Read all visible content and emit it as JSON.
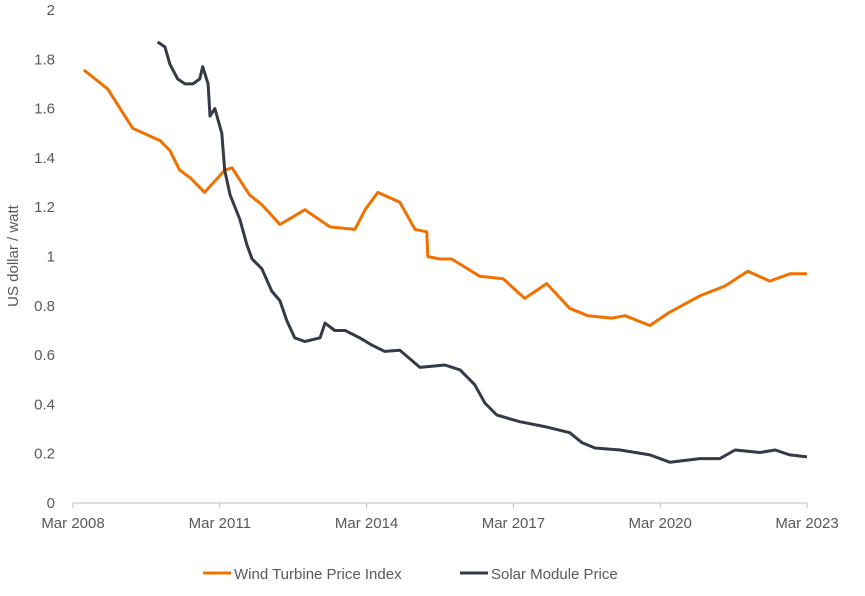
{
  "chart_data": {
    "type": "line",
    "title": "",
    "xlabel": "",
    "ylabel": "US dollar / watt",
    "xlim": [
      2008.17,
      2023.17
    ],
    "ylim": [
      0,
      2
    ],
    "y_ticks": [
      "0",
      "0.2",
      "0.4",
      "0.6",
      "0.8",
      "1",
      "1.2",
      "1.4",
      "1.6",
      "1.8",
      "2"
    ],
    "x_ticks": [
      {
        "label": "Mar 2008",
        "value": 2008.17
      },
      {
        "label": "Mar 2011",
        "value": 2011.17
      },
      {
        "label": "Mar 2014",
        "value": 2014.17
      },
      {
        "label": "Mar 2017",
        "value": 2017.17
      },
      {
        "label": "Mar 2020",
        "value": 2020.17
      },
      {
        "label": "Mar 2023",
        "value": 2023.17
      }
    ],
    "grid": false,
    "legend_position": "bottom",
    "series": [
      {
        "name": "Wind Turbine Price Index",
        "color": "#F07000",
        "x": [
          2008.39,
          2008.88,
          2009.39,
          2009.95,
          2010.15,
          2010.35,
          2010.56,
          2010.86,
          2011.27,
          2011.42,
          2011.78,
          2012.03,
          2012.4,
          2012.91,
          2013.42,
          2013.93,
          2014.14,
          2014.4,
          2014.85,
          2015.16,
          2015.4,
          2015.42,
          2015.67,
          2015.91,
          2016.28,
          2016.48,
          2016.96,
          2017.4,
          2017.85,
          2018.32,
          2018.69,
          2019.18,
          2019.45,
          2019.96,
          2020.33,
          2020.98,
          2021.49,
          2021.96,
          2022.41,
          2022.82,
          2023.17
        ],
        "y": [
          1.757,
          1.68,
          1.52,
          1.47,
          1.43,
          1.35,
          1.32,
          1.26,
          1.35,
          1.36,
          1.25,
          1.21,
          1.13,
          1.19,
          1.12,
          1.11,
          1.19,
          1.26,
          1.22,
          1.11,
          1.1,
          1.0,
          0.99,
          0.99,
          0.945,
          0.92,
          0.91,
          0.83,
          0.89,
          0.79,
          0.76,
          0.75,
          0.76,
          0.72,
          0.77,
          0.84,
          0.88,
          0.94,
          0.9,
          0.93,
          0.93
        ]
      },
      {
        "name": "Solar Module Price",
        "color": "#343A48",
        "x": [
          2009.9,
          2010.05,
          2010.15,
          2010.31,
          2010.46,
          2010.62,
          2010.76,
          2010.82,
          2010.93,
          2010.97,
          2011.07,
          2011.21,
          2011.27,
          2011.38,
          2011.58,
          2011.72,
          2011.83,
          2012.03,
          2012.23,
          2012.4,
          2012.54,
          2012.7,
          2012.91,
          2013.22,
          2013.32,
          2013.52,
          2013.73,
          2014.03,
          2014.28,
          2014.54,
          2014.85,
          2015.26,
          2015.77,
          2016.08,
          2016.38,
          2016.59,
          2016.83,
          2017.3,
          2017.81,
          2018.32,
          2018.57,
          2018.84,
          2019.35,
          2019.96,
          2020.37,
          2020.98,
          2021.39,
          2021.7,
          2022.21,
          2022.52,
          2022.82,
          2023.17
        ],
        "y": [
          1.87,
          1.85,
          1.78,
          1.72,
          1.7,
          1.7,
          1.72,
          1.77,
          1.7,
          1.57,
          1.6,
          1.5,
          1.35,
          1.25,
          1.15,
          1.05,
          0.99,
          0.95,
          0.86,
          0.82,
          0.74,
          0.67,
          0.655,
          0.67,
          0.73,
          0.7,
          0.7,
          0.67,
          0.64,
          0.615,
          0.62,
          0.55,
          0.56,
          0.54,
          0.48,
          0.405,
          0.357,
          0.33,
          0.31,
          0.285,
          0.245,
          0.223,
          0.215,
          0.195,
          0.165,
          0.18,
          0.18,
          0.215,
          0.205,
          0.215,
          0.195,
          0.187
        ]
      }
    ]
  }
}
